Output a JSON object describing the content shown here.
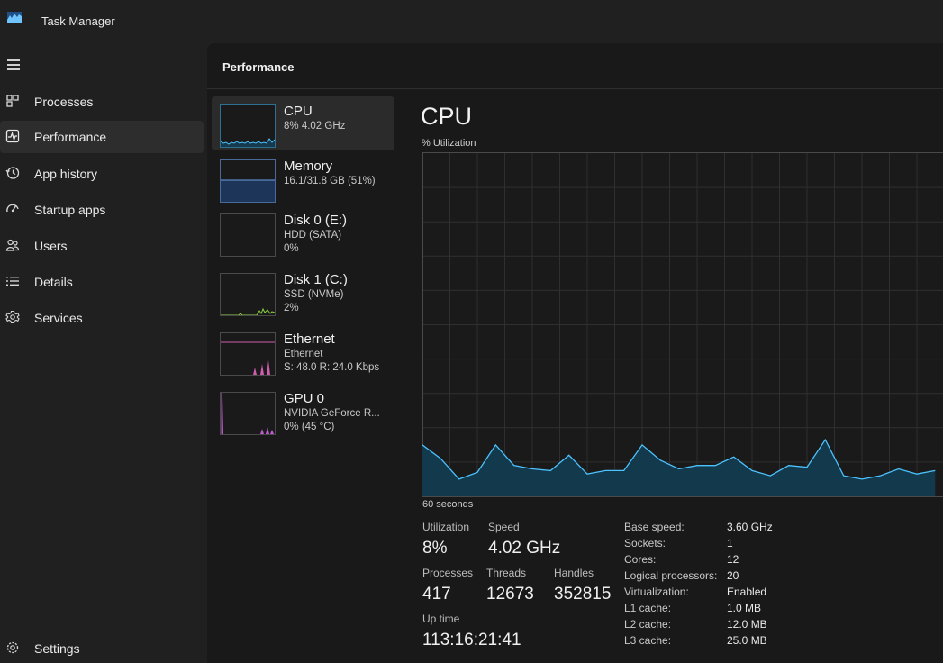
{
  "window": {
    "title": "Task Manager"
  },
  "nav": {
    "items": [
      {
        "label": "Processes",
        "icon": "processes-icon"
      },
      {
        "label": "Performance",
        "icon": "performance-icon",
        "selected": true
      },
      {
        "label": "App history",
        "icon": "app-history-icon"
      },
      {
        "label": "Startup apps",
        "icon": "startup-apps-icon"
      },
      {
        "label": "Users",
        "icon": "users-icon"
      },
      {
        "label": "Details",
        "icon": "details-icon"
      },
      {
        "label": "Services",
        "icon": "services-icon"
      }
    ],
    "settings_label": "Settings"
  },
  "page": {
    "title": "Performance"
  },
  "resources": [
    {
      "name": "CPU",
      "sub1": "8%  4.02 GHz",
      "sub2": "",
      "color": "#4cc2ff"
    },
    {
      "name": "Memory",
      "sub1": "16.1/31.8 GB (51%)",
      "sub2": "",
      "color": "#6aa0e6"
    },
    {
      "name": "Disk 0 (E:)",
      "sub1": "HDD (SATA)",
      "sub2": "0%",
      "color": "#8ccf3f"
    },
    {
      "name": "Disk 1 (C:)",
      "sub1": "SSD (NVMe)",
      "sub2": "2%",
      "color": "#8ccf3f"
    },
    {
      "name": "Ethernet",
      "sub1": "Ethernet",
      "sub2": "S: 48.0  R: 24.0 Kbps",
      "color": "#d05cb0"
    },
    {
      "name": "GPU 0",
      "sub1": "NVIDIA GeForce R...",
      "sub2": "0%  (45 °C)",
      "color": "#c05cd0"
    }
  ],
  "detail": {
    "title": "CPU",
    "graph_label": "% Utilization",
    "time_label": "60 seconds",
    "stats": {
      "utilization_label": "Utilization",
      "utilization": "8%",
      "speed_label": "Speed",
      "speed": "4.02 GHz",
      "processes_label": "Processes",
      "processes": "417",
      "threads_label": "Threads",
      "threads": "12673",
      "handles_label": "Handles",
      "handles": "352815",
      "uptime_label": "Up time",
      "uptime": "113:16:21:41"
    },
    "specs": [
      {
        "label": "Base speed:",
        "value": "3.60 GHz"
      },
      {
        "label": "Sockets:",
        "value": "1"
      },
      {
        "label": "Cores:",
        "value": "12"
      },
      {
        "label": "Logical processors:",
        "value": "20"
      },
      {
        "label": "Virtualization:",
        "value": "Enabled"
      },
      {
        "label": "L1 cache:",
        "value": "1.0 MB"
      },
      {
        "label": "L2 cache:",
        "value": "12.0 MB"
      },
      {
        "label": "L3 cache:",
        "value": "25.0 MB"
      }
    ]
  },
  "chart_data": {
    "type": "area",
    "title": "CPU",
    "ylabel": "% Utilization",
    "xlabel": "60 seconds",
    "ylim": [
      0,
      100
    ],
    "grid": true,
    "series": [
      {
        "values": [
          15,
          11,
          5,
          7,
          15,
          9,
          8,
          7.5,
          12,
          6.5,
          7.5,
          7.5,
          15,
          10.5,
          8,
          9,
          9,
          11.5,
          7.5,
          6,
          9,
          8.5,
          16.5,
          6,
          5,
          6,
          8,
          6.5,
          7.5
        ]
      }
    ],
    "colors": {
      "line": "#4cc2ff",
      "fill": "#12394c"
    }
  }
}
